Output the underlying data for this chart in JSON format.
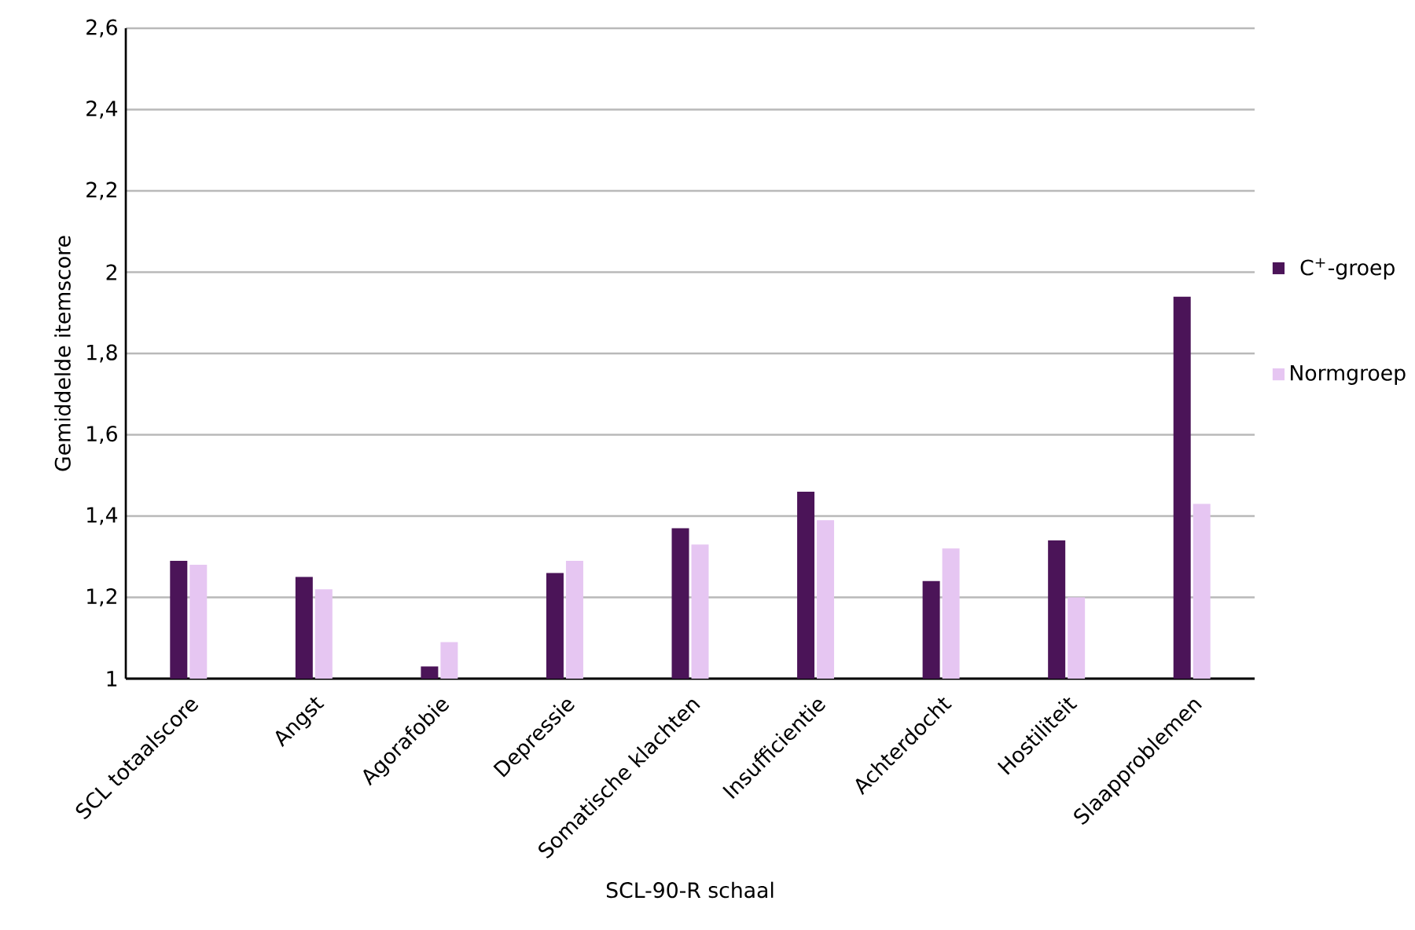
{
  "chart_data": {
    "type": "bar",
    "xlabel": "SCL-90-R schaal",
    "ylabel": "Gemiddelde itemscore",
    "categories": [
      "SCL totaalscore",
      "Angst",
      "Agorafobie",
      "Depressie",
      "Somatische klachten",
      "Insufficientie",
      "Achterdocht",
      "Hostiliteit",
      "Slaapproblemen"
    ],
    "series": [
      {
        "name": "C$^{+}$-groep",
        "color": "#4b1458",
        "values": [
          1.29,
          1.25,
          1.03,
          1.26,
          1.37,
          1.46,
          1.24,
          1.34,
          1.94
        ]
      },
      {
        "name": "Normgroep",
        "color": "#e6c6f2",
        "values": [
          1.28,
          1.22,
          1.09,
          1.29,
          1.33,
          1.39,
          1.32,
          1.2,
          1.43
        ]
      }
    ],
    "ylim": [
      1,
      2.6
    ],
    "yticks": [
      1,
      {
        "value": 1.2,
        "label": "1,2"
      },
      {
        "value": 1.4,
        "label": "1,4"
      },
      {
        "value": 1.6,
        "label": "1,6"
      },
      {
        "value": 1.8,
        "label": "1,8"
      },
      2,
      {
        "value": 2.2,
        "label": "2,2"
      },
      {
        "value": 2.4,
        "label": "2,4"
      },
      {
        "value": 2.6,
        "label": "2,6"
      }
    ],
    "grid": "y",
    "legend": "right"
  }
}
